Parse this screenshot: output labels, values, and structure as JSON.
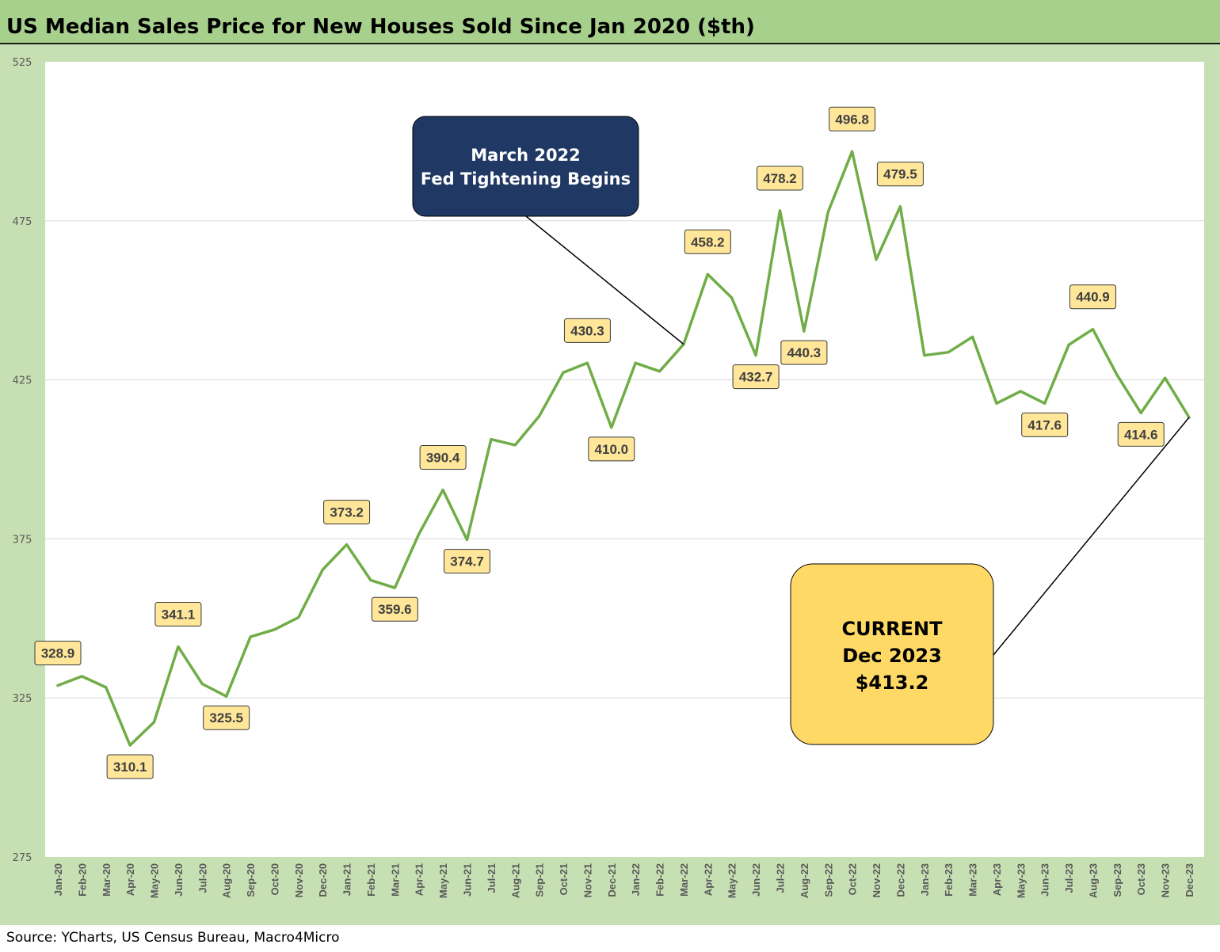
{
  "title": "US Median Sales Price for New Houses Sold Since Jan 2020 ($th)",
  "source": "Source: YCharts, US Census Bureau, Macro4Micro",
  "colors": {
    "title_bg": "#a8d08d",
    "frame_bg": "#c6e0b4",
    "line": "#70ad47",
    "data_label_bg": "#ffe699",
    "callout_navy": "#203864",
    "callout_yellow": "#ffd966"
  },
  "chart_data": {
    "type": "line",
    "xlabel": "",
    "ylabel": "",
    "ylim": [
      275,
      525
    ],
    "yticks": [
      275,
      325,
      375,
      425,
      475,
      525
    ],
    "grid": true,
    "categories": [
      "Jan-20",
      "Feb-20",
      "Mar-20",
      "Apr-20",
      "May-20",
      "Jun-20",
      "Jul-20",
      "Aug-20",
      "Sep-20",
      "Oct-20",
      "Nov-20",
      "Dec-20",
      "Jan-21",
      "Feb-21",
      "Mar-21",
      "Apr-21",
      "May-21",
      "Jun-21",
      "Jul-21",
      "Aug-21",
      "Sep-21",
      "Oct-21",
      "Nov-21",
      "Dec-21",
      "Jan-22",
      "Feb-22",
      "Mar-22",
      "Apr-22",
      "May-22",
      "Jun-22",
      "Jul-22",
      "Aug-22",
      "Sep-22",
      "Oct-22",
      "Nov-22",
      "Dec-22",
      "Jan-23",
      "Feb-23",
      "Mar-23",
      "Apr-23",
      "May-23",
      "Jun-23",
      "Jul-23",
      "Aug-23",
      "Sep-23",
      "Oct-23",
      "Nov-23",
      "Dec-23"
    ],
    "series": [
      {
        "values": [
          328.9,
          331.8,
          328.3,
          310.1,
          317.4,
          341.1,
          329.4,
          325.5,
          344.2,
          346.5,
          350.3,
          365.3,
          373.2,
          362.0,
          359.6,
          376.5,
          390.4,
          374.7,
          406.3,
          404.5,
          413.6,
          427.3,
          430.3,
          410.0,
          430.3,
          427.7,
          436.2,
          458.2,
          450.8,
          432.7,
          478.2,
          440.3,
          477.8,
          496.8,
          462.8,
          479.5,
          432.7,
          433.7,
          438.5,
          417.6,
          421.4,
          417.6,
          436.0,
          440.9,
          426.6,
          414.6,
          425.6,
          413.2
        ]
      }
    ],
    "data_labels": [
      {
        "category": "Jan-20",
        "text": "328.9"
      },
      {
        "category": "Apr-20",
        "text": "310.1"
      },
      {
        "category": "Jun-20",
        "text": "341.1"
      },
      {
        "category": "Aug-20",
        "text": "325.5"
      },
      {
        "category": "Jan-21",
        "text": "373.2"
      },
      {
        "category": "Mar-21",
        "text": "359.6"
      },
      {
        "category": "May-21",
        "text": "390.4"
      },
      {
        "category": "Jun-21",
        "text": "374.7"
      },
      {
        "category": "Nov-21",
        "text": "430.3"
      },
      {
        "category": "Dec-21",
        "text": "410.0"
      },
      {
        "category": "Apr-22",
        "text": "458.2"
      },
      {
        "category": "Jun-22",
        "text": "432.7"
      },
      {
        "category": "Jul-22",
        "text": "478.2"
      },
      {
        "category": "Aug-22",
        "text": "440.3"
      },
      {
        "category": "Oct-22",
        "text": "496.8"
      },
      {
        "category": "Dec-22",
        "text": "479.5"
      },
      {
        "category": "Jun-23",
        "text": "417.6"
      },
      {
        "category": "Aug-23",
        "text": "440.9"
      },
      {
        "category": "Oct-23",
        "text": "414.6"
      }
    ],
    "annotations": [
      {
        "id": "fed",
        "lines": [
          "March 2022",
          "Fed Tightening Begins"
        ],
        "points_to": "Mar-22"
      },
      {
        "id": "current",
        "lines": [
          "CURRENT",
          "Dec 2023",
          "$413.2"
        ],
        "points_to": "Dec-23"
      }
    ]
  }
}
